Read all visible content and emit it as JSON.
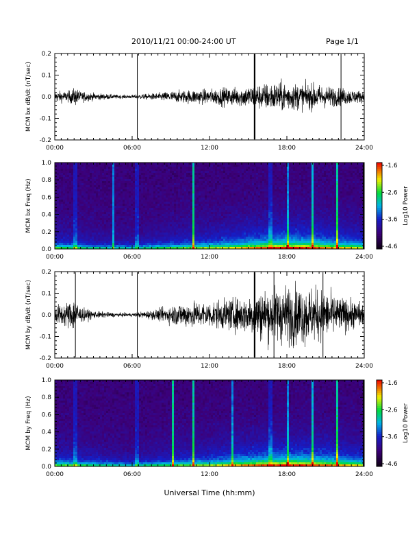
{
  "header": {
    "title": "2010/11/21  00:00-24:00 UT",
    "page": "Page 1/1"
  },
  "xlabel": "Universal Time (hh:mm)",
  "x_ticks": [
    "00:00",
    "06:00",
    "12:00",
    "18:00",
    "24:00"
  ],
  "colorbar": {
    "label": "Log10 Power",
    "ticks": [
      "-1.6",
      "-2.6",
      "-3.6",
      "-4.6"
    ]
  },
  "chart_data": [
    {
      "type": "line",
      "ylabel": "MCM bx dB/dt (nT/sec)",
      "x_unit": "hours UT",
      "xlim": [
        0,
        24
      ],
      "ylim": [
        -0.2,
        0.2
      ],
      "y_ticks": [
        "0.2",
        "0.1",
        "0.0",
        "-0.1",
        "-0.2"
      ],
      "envelope": {
        "x": [
          0,
          1,
          1.6,
          2,
          3,
          4,
          5,
          6,
          7,
          8,
          9,
          10,
          11,
          12,
          13,
          14,
          15,
          16,
          17,
          18,
          19,
          20,
          21,
          22,
          23,
          24
        ],
        "amplitude": [
          0.03,
          0.03,
          0.05,
          0.03,
          0.02,
          0.015,
          0.01,
          0.01,
          0.015,
          0.02,
          0.03,
          0.035,
          0.04,
          0.04,
          0.05,
          0.05,
          0.06,
          0.07,
          0.08,
          0.08,
          0.07,
          0.07,
          0.06,
          0.05,
          0.04,
          0.03
        ]
      },
      "spikes_x": [
        6.4,
        15.5,
        22.2
      ],
      "grid": false
    },
    {
      "type": "heatmap",
      "ylabel": "MCM bx Freq (Hz)",
      "x_unit": "hours UT",
      "xlim": [
        0,
        24
      ],
      "ylim": [
        0,
        1
      ],
      "y_ticks": [
        "1.0",
        "0.8",
        "0.6",
        "0.4",
        "0.2",
        "0.0"
      ],
      "zlim": [
        -4.6,
        -1.6
      ],
      "activity": {
        "x": [
          0,
          2,
          4,
          6,
          8,
          10,
          12,
          14,
          16,
          18,
          20,
          22,
          24
        ],
        "level": [
          0.35,
          0.3,
          0.2,
          0.2,
          0.3,
          0.4,
          0.45,
          0.55,
          0.7,
          0.8,
          0.75,
          0.6,
          0.5
        ]
      },
      "bursts_x": [
        1.6,
        4.6,
        6.4,
        10.8,
        16.8,
        18.2,
        20.1,
        22.0
      ],
      "grid": false
    },
    {
      "type": "line",
      "ylabel": "MCM by dB/dt (nT/sec)",
      "x_unit": "hours UT",
      "xlim": [
        0,
        24
      ],
      "ylim": [
        -0.2,
        0.2
      ],
      "y_ticks": [
        "0.2",
        "0.1",
        "0.0",
        "-0.1",
        "-0.2"
      ],
      "envelope": {
        "x": [
          0,
          1,
          1.6,
          2,
          3,
          4,
          5,
          6,
          7,
          8,
          9,
          10,
          11,
          12,
          13,
          14,
          15,
          16,
          17,
          18,
          19,
          20,
          21,
          22,
          23,
          24
        ],
        "amplitude": [
          0.05,
          0.07,
          0.1,
          0.04,
          0.02,
          0.015,
          0.01,
          0.01,
          0.02,
          0.03,
          0.05,
          0.07,
          0.07,
          0.07,
          0.08,
          0.09,
          0.1,
          0.14,
          0.15,
          0.16,
          0.16,
          0.15,
          0.13,
          0.1,
          0.08,
          0.06
        ]
      },
      "spikes_x": [
        1.6,
        6.4,
        15.5,
        17.0,
        20.8
      ],
      "grid": false
    },
    {
      "type": "heatmap",
      "ylabel": "MCM by Freq (Hz)",
      "x_unit": "hours UT",
      "xlim": [
        0,
        24
      ],
      "ylim": [
        0,
        1
      ],
      "y_ticks": [
        "1.0",
        "0.8",
        "0.6",
        "0.4",
        "0.2",
        "0.0"
      ],
      "zlim": [
        -4.6,
        -1.6
      ],
      "activity": {
        "x": [
          0,
          2,
          4,
          6,
          8,
          10,
          12,
          14,
          16,
          18,
          20,
          22,
          24
        ],
        "level": [
          0.4,
          0.35,
          0.25,
          0.2,
          0.3,
          0.4,
          0.45,
          0.6,
          0.7,
          0.8,
          0.75,
          0.65,
          0.5
        ]
      },
      "bursts_x": [
        1.6,
        6.4,
        9.2,
        10.8,
        13.8,
        16.8,
        18.2,
        20.1,
        22.0
      ],
      "grid": false
    }
  ]
}
